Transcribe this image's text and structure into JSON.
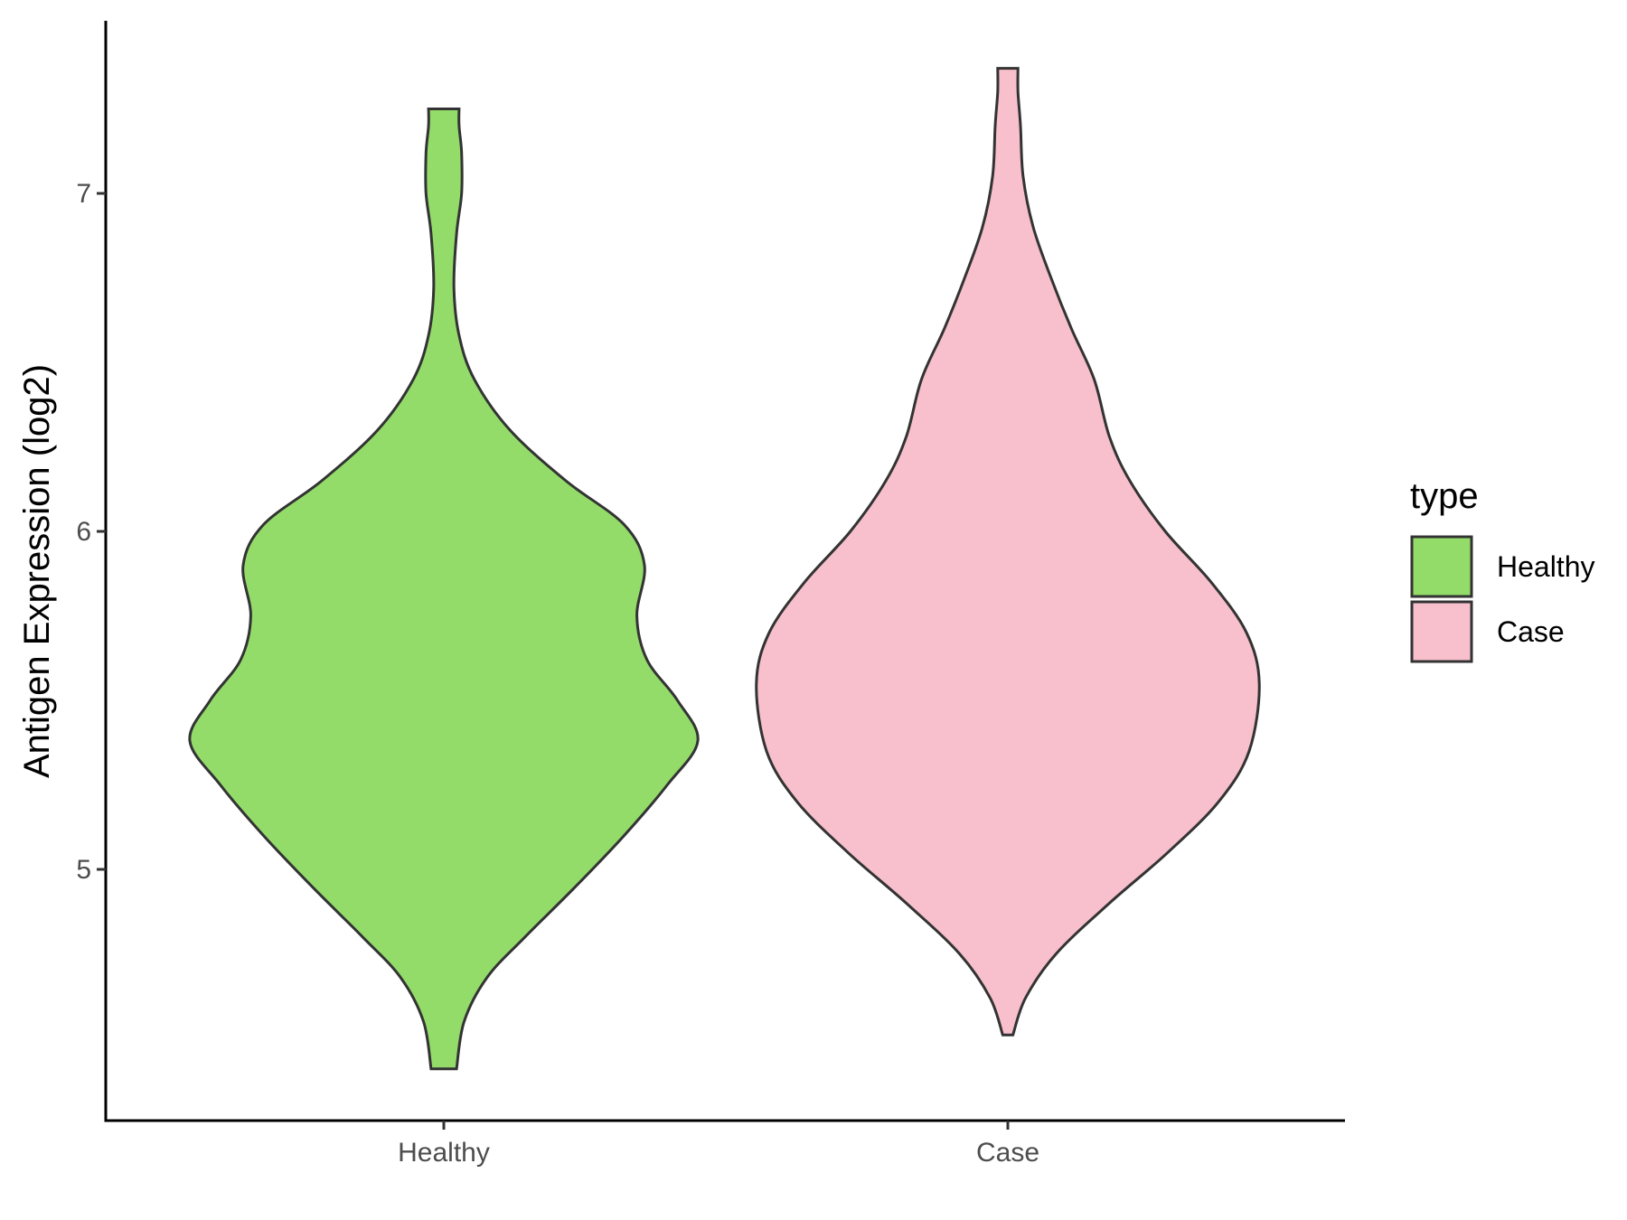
{
  "chart_data": {
    "type": "violin",
    "title": "",
    "xlabel": "",
    "ylabel": "Antigen Expression (log2)",
    "categories": [
      "Healthy",
      "Case"
    ],
    "ylim": [
      4.3,
      7.5
    ],
    "yticks": [
      5,
      6,
      7
    ],
    "grid": false,
    "legend": {
      "title": "type",
      "position": "right",
      "entries": [
        {
          "label": "Healthy",
          "color": "#93DC6A"
        },
        {
          "label": "Case",
          "color": "#F7C0CC"
        }
      ]
    },
    "series": [
      {
        "category": "Healthy",
        "color": "#93DC6A",
        "min": 4.41,
        "max": 7.25,
        "profile": [
          [
            4.41,
            0.05
          ],
          [
            4.55,
            0.08
          ],
          [
            4.68,
            0.17
          ],
          [
            4.8,
            0.32
          ],
          [
            4.95,
            0.52
          ],
          [
            5.1,
            0.71
          ],
          [
            5.25,
            0.88
          ],
          [
            5.38,
            1.0
          ],
          [
            5.5,
            0.92
          ],
          [
            5.62,
            0.8
          ],
          [
            5.75,
            0.76
          ],
          [
            5.9,
            0.79
          ],
          [
            6.02,
            0.71
          ],
          [
            6.15,
            0.48
          ],
          [
            6.3,
            0.26
          ],
          [
            6.45,
            0.12
          ],
          [
            6.58,
            0.06
          ],
          [
            6.72,
            0.04
          ],
          [
            6.88,
            0.05
          ],
          [
            7.0,
            0.07
          ],
          [
            7.12,
            0.07
          ],
          [
            7.2,
            0.06
          ],
          [
            7.25,
            0.06
          ]
        ]
      },
      {
        "category": "Case",
        "color": "#F7C0CC",
        "min": 4.51,
        "max": 7.37,
        "profile": [
          [
            4.51,
            0.02
          ],
          [
            4.62,
            0.07
          ],
          [
            4.75,
            0.19
          ],
          [
            4.9,
            0.4
          ],
          [
            5.05,
            0.63
          ],
          [
            5.2,
            0.83
          ],
          [
            5.35,
            0.95
          ],
          [
            5.55,
            0.99
          ],
          [
            5.7,
            0.94
          ],
          [
            5.85,
            0.8
          ],
          [
            6.0,
            0.62
          ],
          [
            6.15,
            0.48
          ],
          [
            6.28,
            0.4
          ],
          [
            6.45,
            0.34
          ],
          [
            6.6,
            0.25
          ],
          [
            6.75,
            0.17
          ],
          [
            6.9,
            0.1
          ],
          [
            7.05,
            0.06
          ],
          [
            7.2,
            0.05
          ],
          [
            7.3,
            0.04
          ],
          [
            7.37,
            0.04
          ]
        ]
      }
    ]
  }
}
